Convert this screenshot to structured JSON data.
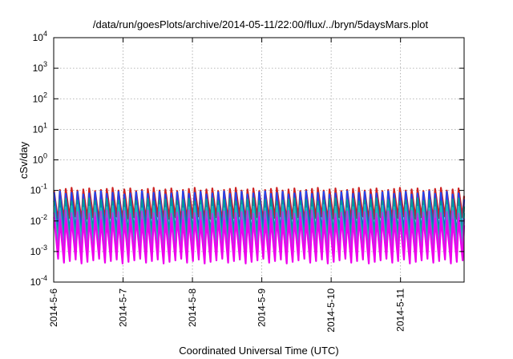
{
  "chart_data": {
    "type": "line",
    "title": "/data/run/goesPlots/archive/2014-05-11/22:00/flux/../bryn/5daysMars.plot",
    "xlabel": "Coordinated Universal Time (UTC)",
    "ylabel": "cSv/day",
    "x_range": [
      "2014-05-06",
      "2014-05-11T22:00"
    ],
    "x_ticks": [
      "2014-5-6",
      "2014-5-7",
      "2014-5-8",
      "2014-5-9",
      "2014-5-10",
      "2014-5-11"
    ],
    "y_scale": "log",
    "ylim": [
      0.0001,
      10000
    ],
    "y_ticks": [
      {
        "base": "10",
        "exp": "-4"
      },
      {
        "base": "10",
        "exp": "-3"
      },
      {
        "base": "10",
        "exp": "-2"
      },
      {
        "base": "10",
        "exp": "-1"
      },
      {
        "base": "10",
        "exp": "0"
      },
      {
        "base": "10",
        "exp": "1"
      },
      {
        "base": "10",
        "exp": "2"
      },
      {
        "base": "10",
        "exp": "3"
      },
      {
        "base": "10",
        "exp": "4"
      }
    ],
    "grid": true,
    "oscillation_cycles": 70,
    "series": [
      {
        "color": "#cc2222",
        "peak": 0.11,
        "trough": 0.012
      },
      {
        "color": "#2244ee",
        "peak": 0.085,
        "trough": 0.004
      },
      {
        "color": "#009999",
        "peak": 0.05,
        "trough": 0.003
      },
      {
        "color": "#22bbbb",
        "peak": 0.03,
        "trough": 0.0015
      },
      {
        "color": "#aa44dd",
        "peak": 0.02,
        "trough": 0.0009
      },
      {
        "color": "#ee00ee",
        "peak": 0.012,
        "trough": 0.0005
      }
    ]
  }
}
